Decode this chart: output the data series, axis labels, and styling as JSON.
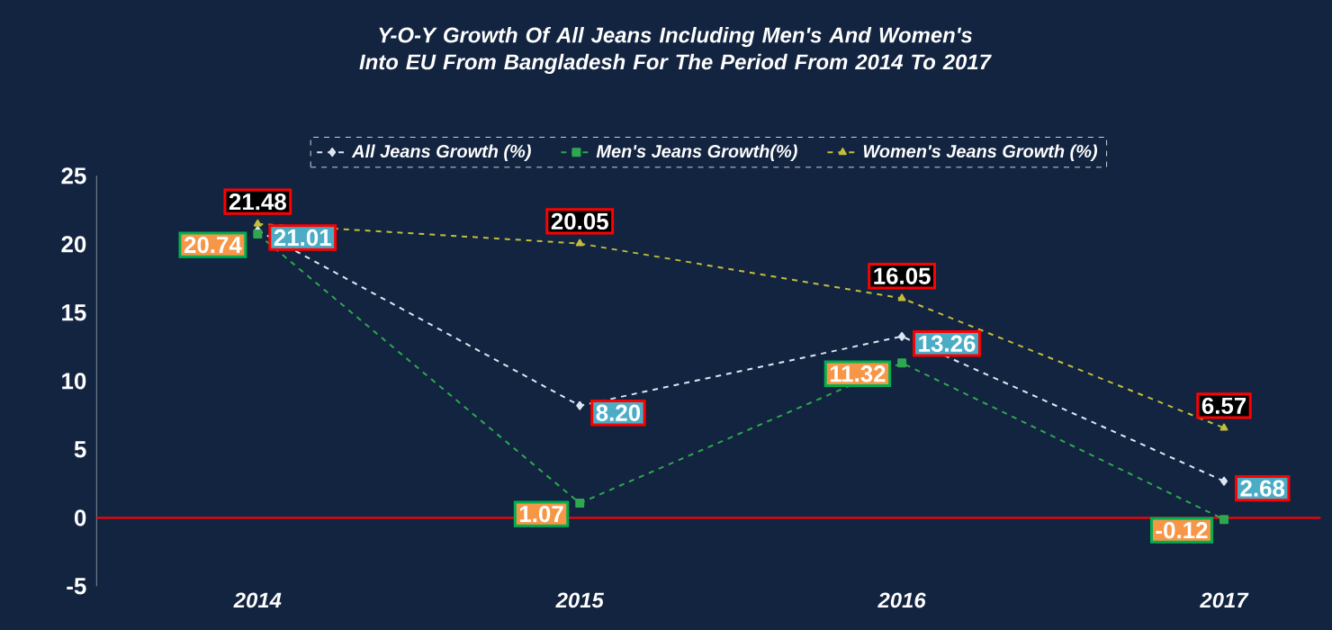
{
  "chart_data": {
    "type": "line",
    "title": "Y-O-Y Growth Of All Jeans Including Men's And Women's Into EU From Bangladesh For The Period From 2014 To 2017",
    "categories": [
      "2014",
      "2015",
      "2016",
      "2017"
    ],
    "series": [
      {
        "name": "All Jeans Growth (%)",
        "color": "#dce6f2",
        "marker": "diamond",
        "values": [
          21.01,
          8.2,
          13.26,
          2.68
        ],
        "value_labels": [
          "21.01",
          "8.20",
          "13.26",
          "2.68"
        ]
      },
      {
        "name": "Men's Jeans Growth(%)",
        "color": "#2ea84f",
        "marker": "square",
        "values": [
          20.74,
          1.07,
          11.32,
          -0.12
        ],
        "value_labels": [
          "20.74",
          "1.07",
          "11.32",
          "-0.12"
        ]
      },
      {
        "name": "Women's Jeans Growth (%)",
        "color": "#c4bd3a",
        "marker": "triangle",
        "values": [
          21.48,
          20.05,
          16.05,
          6.57
        ],
        "value_labels": [
          "21.48",
          "20.05",
          "16.05",
          "6.57"
        ]
      }
    ],
    "ylim": [
      -5,
      25
    ],
    "yticks": [
      -5,
      0,
      5,
      10,
      15,
      20,
      25
    ],
    "ref_lines": [
      {
        "axis": "y",
        "value": 0,
        "color": "#ff0000"
      }
    ],
    "line_style": "dashed",
    "legend": "top",
    "grid": false
  }
}
